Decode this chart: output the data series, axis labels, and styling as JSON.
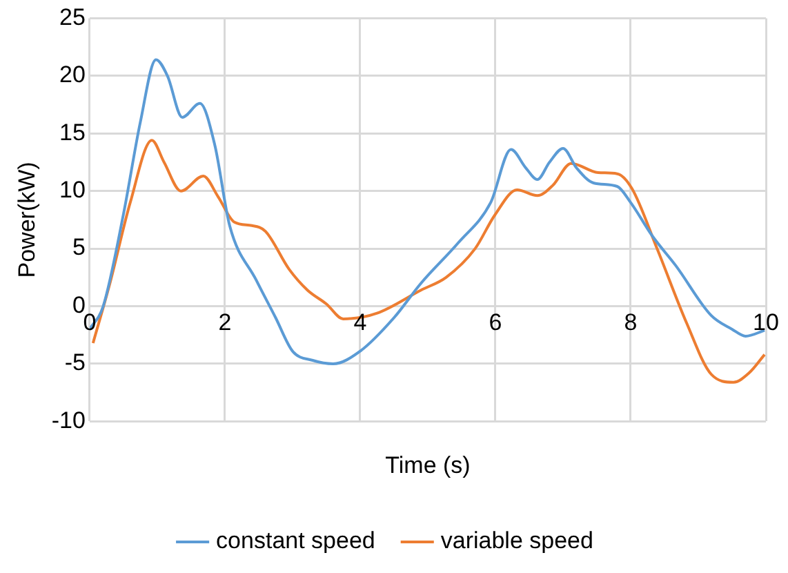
{
  "chart_data": {
    "type": "line",
    "xlabel": "Time (s)",
    "ylabel": "Power(kW)",
    "xlim": [
      0,
      10
    ],
    "xticks": [
      0,
      2,
      4,
      6,
      8,
      10
    ],
    "ylim": [
      -10,
      25
    ],
    "yticks": [
      -10,
      -5,
      0,
      5,
      10,
      15,
      20,
      25
    ],
    "grid": true,
    "legend": "bottom",
    "marker": "none",
    "line_style": "solid",
    "series": [
      {
        "name": "constant speed",
        "color": "#5b9bd5",
        "x": [
          0,
          0.2,
          0.5,
          0.75,
          0.98,
          1.15,
          1.37,
          1.63,
          1.85,
          2.07,
          2.46,
          2.75,
          3.0,
          3.3,
          3.6,
          4.0,
          4.5,
          4.9,
          5.45,
          5.93,
          6.23,
          6.45,
          6.62,
          6.8,
          7.0,
          7.2,
          7.45,
          7.8,
          8.0,
          8.32,
          8.67,
          9.19,
          9.5,
          9.7,
          9.98
        ],
        "values": [
          -2,
          0,
          8,
          16,
          21.4,
          20,
          16.4,
          17.6,
          14,
          7,
          2.3,
          -1,
          -3.9,
          -4.7,
          -5,
          -3.9,
          -1,
          2,
          5.5,
          9,
          13.6,
          12,
          11,
          12.5,
          13.7,
          12,
          10.7,
          10.4,
          9,
          6.1,
          3.5,
          -0.8,
          -2,
          -2.6,
          -2.1
        ]
      },
      {
        "name": "variable speed",
        "color": "#ed7d31",
        "x": [
          0.05,
          0.3,
          0.6,
          0.92,
          1.1,
          1.35,
          1.68,
          1.9,
          2.14,
          2.4,
          2.6,
          2.95,
          3.22,
          3.5,
          3.75,
          4.25,
          4.9,
          5.27,
          5.7,
          5.99,
          6.32,
          6.62,
          6.85,
          7.12,
          7.52,
          7.8,
          8.02,
          8.39,
          8.83,
          9.19,
          9.52,
          9.75,
          9.98
        ],
        "values": [
          -3.2,
          2,
          9,
          14.4,
          12.5,
          10,
          11.3,
          9.5,
          7.3,
          7,
          6.5,
          3.2,
          1.4,
          0.2,
          -1.1,
          -0.6,
          1.4,
          2.5,
          5,
          7.9,
          10.1,
          9.6,
          10.5,
          12.4,
          11.6,
          11.5,
          10.2,
          5,
          -1.5,
          -5.9,
          -6.6,
          -5.8,
          -4.2
        ]
      }
    ]
  }
}
